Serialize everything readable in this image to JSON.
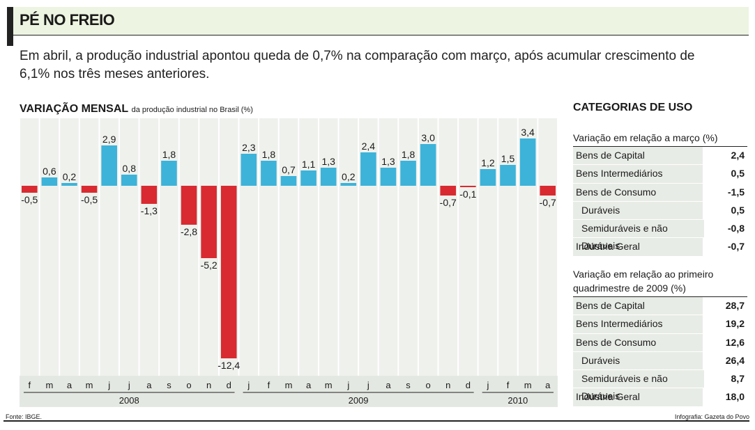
{
  "header": {
    "title": "PÉ NO FREIO",
    "subtitle": "Em abril, a produção industrial apontou queda de 0,7% na comparação com março, após acumular crescimento de 6,1% nos três meses anteriores."
  },
  "chart_title": {
    "main": "VARIAÇÃO MENSAL",
    "rest": "da produção industrial no Brasil (%)"
  },
  "colors": {
    "positive": "#3db3d9",
    "negative": "#d82a30",
    "column_bg": "#eff1ed"
  },
  "chart_data": {
    "type": "bar",
    "title": "VARIAÇÃO MENSAL da produção industrial no Brasil (%)",
    "categories": [
      "f",
      "m",
      "a",
      "m",
      "j",
      "j",
      "a",
      "s",
      "o",
      "n",
      "d",
      "j",
      "f",
      "m",
      "a",
      "m",
      "j",
      "j",
      "a",
      "s",
      "o",
      "n",
      "d",
      "j",
      "f",
      "m",
      "a"
    ],
    "years": [
      {
        "label": "2008",
        "count": 11
      },
      {
        "label": "2009",
        "count": 12
      },
      {
        "label": "2010",
        "count": 4
      }
    ],
    "values": [
      -0.5,
      0.6,
      0.2,
      -0.5,
      2.9,
      0.8,
      -1.3,
      1.8,
      -2.8,
      -5.2,
      -12.4,
      2.3,
      1.8,
      0.7,
      1.1,
      1.3,
      0.2,
      2.4,
      1.3,
      1.8,
      3.0,
      -0.7,
      -0.1,
      1.2,
      1.5,
      3.4,
      -0.7
    ],
    "labels": [
      "-0,5",
      "0,6",
      "0,2",
      "-0,5",
      "2,9",
      "0,8",
      "-1,3",
      "1,8",
      "-2,8",
      "-5,2",
      "-12,4",
      "2,3",
      "1,8",
      "0,7",
      "1,1",
      "1,3",
      "0,2",
      "2,4",
      "1,3",
      "1,8",
      "3,0",
      "-0,7",
      "-0,1",
      "1,2",
      "1,5",
      "3,4",
      "-0,7"
    ],
    "ylim": [
      -12.4,
      3.4
    ],
    "grid": false
  },
  "categorias": {
    "title": "CATEGORIAS DE USO",
    "table1": {
      "caption": "Variação em relação a março (%)",
      "rows": [
        {
          "label": "Bens de Capital",
          "value": "2,4"
        },
        {
          "label": "Bens Intermediários",
          "value": "0,5"
        },
        {
          "label": "Bens de Consumo",
          "value": "-1,5"
        },
        {
          "label": "Duráveis",
          "value": "0,5",
          "indent": true
        },
        {
          "label": "Semiduráveis e não Duráveis",
          "value": "-0,8",
          "indent": true
        },
        {
          "label": "Indústria Geral",
          "value": "-0,7"
        }
      ]
    },
    "table2": {
      "caption": "Variação em relação ao primeiro quadrimestre de 2009 (%)",
      "rows": [
        {
          "label": "Bens de Capital",
          "value": "28,7"
        },
        {
          "label": "Bens Intermediários",
          "value": "19,2"
        },
        {
          "label": "Bens de Consumo",
          "value": "12,6"
        },
        {
          "label": "Duráveis",
          "value": "26,4",
          "indent": true
        },
        {
          "label": "Semiduráveis e não Duráveis",
          "value": "8,7",
          "indent": true
        },
        {
          "label": "Indústria Geral",
          "value": "18,0"
        }
      ]
    }
  },
  "footer": {
    "source": "Fonte: IBGE.",
    "credit": "Infografia: Gazeta do Povo"
  }
}
